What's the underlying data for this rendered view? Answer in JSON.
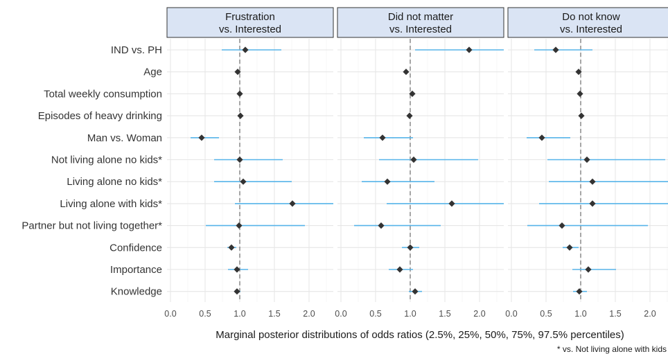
{
  "chart_data": {
    "type": "forest",
    "xlabel": "Marginal posterior distributions of odds ratios (2.5%, 25%, 50%, 75%, 97.5% percentiles)",
    "footnote": "* vs. Not living alone with kids",
    "x_ticks": [
      0.0,
      0.5,
      1.0,
      1.5,
      2.0
    ],
    "x_tick_labels": [
      "0.0",
      "0.5",
      "1.0",
      "1.5",
      "2.0"
    ],
    "xlim": [
      -0.05,
      2.35
    ],
    "reference_line": 1.0,
    "rows": [
      "IND vs. PH",
      "Age",
      "Total weekly consumption",
      "Episodes of heavy drinking",
      "Man vs. Woman",
      "Not living alone no kids*",
      "Living alone no kids*",
      "Living alone with kids*",
      "Partner but not living together*",
      "Confidence",
      "Importance",
      "Knowledge"
    ],
    "colors": {
      "interval": "#56B4E9",
      "point": "#333333",
      "reference": "#808080",
      "strip": "#dae4f4"
    },
    "panels": [
      {
        "title_line1": "Frustration",
        "title_line2": "vs. Interested",
        "intervals": [
          {
            "low": 0.74,
            "median": 1.08,
            "high": 1.6
          },
          {
            "low": 0.95,
            "median": 0.97,
            "high": 0.99
          },
          {
            "low": 0.99,
            "median": 1.0,
            "high": 1.01
          },
          {
            "low": 0.99,
            "median": 1.01,
            "high": 1.02
          },
          {
            "low": 0.29,
            "median": 0.45,
            "high": 0.7
          },
          {
            "low": 0.63,
            "median": 1.0,
            "high": 1.62
          },
          {
            "low": 0.63,
            "median": 1.05,
            "high": 1.75
          },
          {
            "low": 0.93,
            "median": 1.76,
            "high": 2.35
          },
          {
            "low": 0.51,
            "median": 0.99,
            "high": 1.94
          },
          {
            "low": 0.82,
            "median": 0.88,
            "high": 0.95
          },
          {
            "low": 0.83,
            "median": 0.96,
            "high": 1.12
          },
          {
            "low": 0.92,
            "median": 0.96,
            "high": 1.01
          }
        ]
      },
      {
        "title_line1": "Did not matter",
        "title_line2": "vs. Interested",
        "intervals": [
          {
            "low": 1.07,
            "median": 1.85,
            "high": 2.35
          },
          {
            "low": 0.92,
            "median": 0.94,
            "high": 0.96
          },
          {
            "low": 1.01,
            "median": 1.03,
            "high": 1.05
          },
          {
            "low": 0.97,
            "median": 0.99,
            "high": 1.01
          },
          {
            "low": 0.33,
            "median": 0.6,
            "high": 1.04
          },
          {
            "low": 0.55,
            "median": 1.05,
            "high": 1.98
          },
          {
            "low": 0.3,
            "median": 0.67,
            "high": 1.35
          },
          {
            "low": 0.66,
            "median": 1.6,
            "high": 2.35
          },
          {
            "low": 0.19,
            "median": 0.58,
            "high": 1.44
          },
          {
            "low": 0.88,
            "median": 1.0,
            "high": 1.13
          },
          {
            "low": 0.69,
            "median": 0.85,
            "high": 1.04
          },
          {
            "low": 0.98,
            "median": 1.07,
            "high": 1.17
          }
        ]
      },
      {
        "title_line1": "Do not know",
        "title_line2": "vs. Interested",
        "intervals": [
          {
            "low": 0.33,
            "median": 0.64,
            "high": 1.17
          },
          {
            "low": 0.96,
            "median": 0.97,
            "high": 0.99
          },
          {
            "low": 0.98,
            "median": 0.99,
            "high": 1.0
          },
          {
            "low": 0.99,
            "median": 1.01,
            "high": 1.02
          },
          {
            "low": 0.22,
            "median": 0.44,
            "high": 0.85
          },
          {
            "low": 0.52,
            "median": 1.09,
            "high": 2.22
          },
          {
            "low": 0.54,
            "median": 1.17,
            "high": 2.35
          },
          {
            "low": 0.4,
            "median": 1.17,
            "high": 2.35
          },
          {
            "low": 0.23,
            "median": 0.73,
            "high": 1.97
          },
          {
            "low": 0.74,
            "median": 0.84,
            "high": 0.97
          },
          {
            "low": 0.88,
            "median": 1.11,
            "high": 1.51
          },
          {
            "low": 0.89,
            "median": 0.98,
            "high": 1.09
          }
        ]
      }
    ]
  }
}
